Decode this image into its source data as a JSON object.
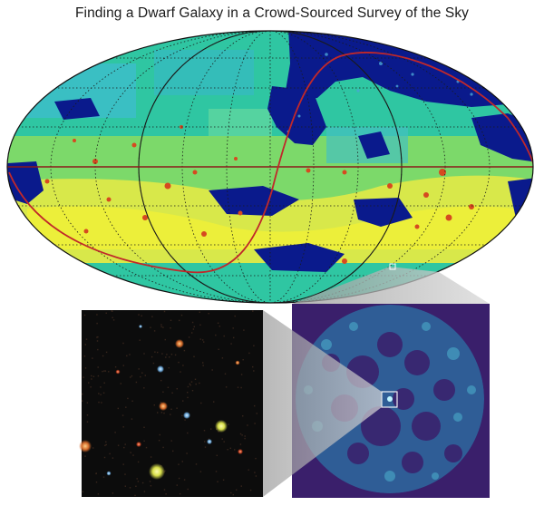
{
  "figure": {
    "title": "Finding a Dwarf Galaxy in a Crowd-Sourced Survey of the Sky"
  },
  "colors": {
    "map_low": "#0a1a8c",
    "map_mid": "#22c3a8",
    "map_high": "#f2f232",
    "map_hot": "#d64a20",
    "galactic_plane": "#c0282a",
    "grid": "#1a1a1a",
    "density_bg": "#3a1f6b",
    "density_field": "#2e7fa6",
    "photo_bg": "#0c0c0c",
    "callout_gray": "#a8a8a8"
  },
  "panels": {
    "sky_map": "all-sky density map (Mollweide projection)",
    "zoom_density": "zoomed density map of circular survey field",
    "zoom_image": "color image of dwarf galaxy stars"
  }
}
